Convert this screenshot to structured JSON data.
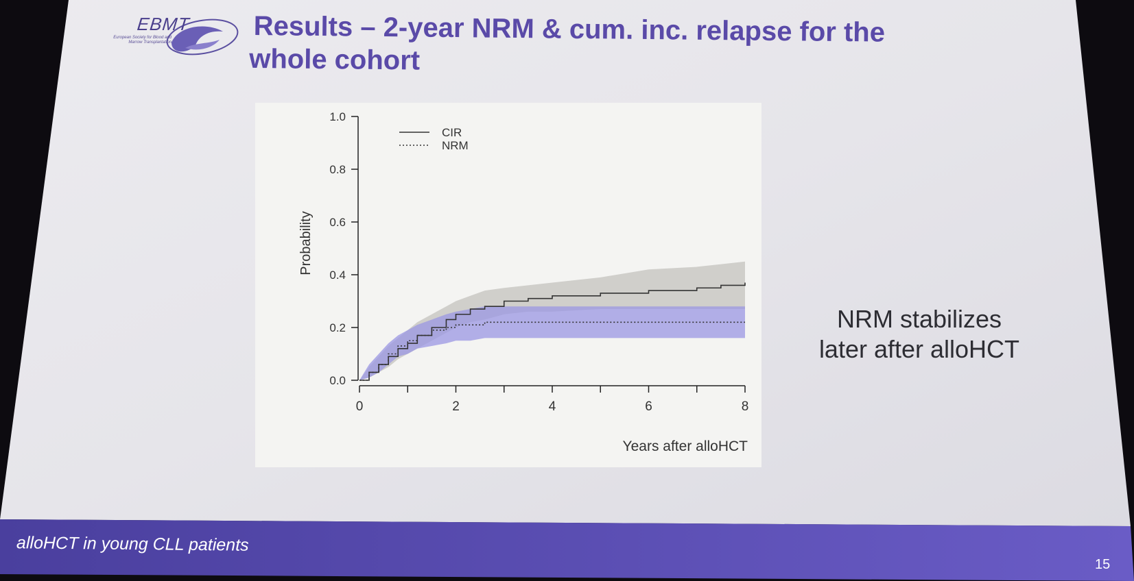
{
  "logo": {
    "name": "EBMT",
    "subtitle_line1": "European Society for Blood and",
    "subtitle_line2": "Marrow Transplantation"
  },
  "slide": {
    "title_line1": "Results – 2-year NRM & cum. inc. relapse for the",
    "title_line2": "whole cohort",
    "note_line1": "NRM stabilizes",
    "note_line2": "later after alloHCT",
    "footer": "alloHCT in young CLL patients",
    "page_number": "15"
  },
  "colors": {
    "slide_bg": "#e6e5ea",
    "footer_bar": "#5d4fb8",
    "title": "#5a4aa8",
    "cir_band": "#c9c8c4",
    "nrm_band": "#9b97e3"
  },
  "chart_data": {
    "type": "line",
    "xlabel": "Years after alloHCT",
    "ylabel": "Probability",
    "xlim": [
      0,
      8
    ],
    "ylim": [
      0,
      1.0
    ],
    "x_ticks": [
      "0",
      "2",
      "4",
      "6",
      "8"
    ],
    "y_ticks": [
      "0.0",
      "0.2",
      "0.4",
      "0.6",
      "0.8",
      "1.0"
    ],
    "legend_position": "top-left",
    "series": [
      {
        "name": "CIR",
        "style": "solid",
        "x": [
          0,
          0.2,
          0.4,
          0.6,
          0.8,
          1.0,
          1.2,
          1.5,
          1.8,
          2.0,
          2.3,
          2.6,
          3.0,
          3.5,
          4.0,
          5.0,
          6.0,
          7.0,
          7.5,
          8.0
        ],
        "y": [
          0,
          0.03,
          0.06,
          0.09,
          0.12,
          0.14,
          0.17,
          0.2,
          0.23,
          0.25,
          0.27,
          0.28,
          0.3,
          0.31,
          0.32,
          0.33,
          0.34,
          0.35,
          0.36,
          0.37
        ],
        "lower": [
          0,
          0.01,
          0.03,
          0.05,
          0.08,
          0.1,
          0.12,
          0.15,
          0.18,
          0.2,
          0.22,
          0.23,
          0.25,
          0.26,
          0.26,
          0.27,
          0.27,
          0.27,
          0.27,
          0.27
        ],
        "upper": [
          0,
          0.05,
          0.09,
          0.13,
          0.16,
          0.19,
          0.22,
          0.25,
          0.28,
          0.3,
          0.32,
          0.34,
          0.35,
          0.36,
          0.37,
          0.39,
          0.42,
          0.43,
          0.44,
          0.45
        ]
      },
      {
        "name": "NRM",
        "style": "dotted",
        "x": [
          0,
          0.2,
          0.4,
          0.6,
          0.8,
          1.0,
          1.2,
          1.5,
          1.8,
          2.0,
          2.3,
          2.6,
          3.0,
          3.5,
          4.0,
          5.0,
          6.0,
          7.0,
          8.0
        ],
        "y": [
          0,
          0.03,
          0.06,
          0.1,
          0.13,
          0.15,
          0.17,
          0.19,
          0.2,
          0.21,
          0.21,
          0.22,
          0.22,
          0.22,
          0.22,
          0.22,
          0.22,
          0.22,
          0.22
        ],
        "lower": [
          0,
          0.01,
          0.03,
          0.06,
          0.09,
          0.1,
          0.12,
          0.13,
          0.14,
          0.15,
          0.15,
          0.16,
          0.16,
          0.16,
          0.16,
          0.16,
          0.16,
          0.16,
          0.16
        ],
        "upper": [
          0,
          0.06,
          0.1,
          0.14,
          0.17,
          0.19,
          0.21,
          0.23,
          0.25,
          0.26,
          0.27,
          0.28,
          0.28,
          0.28,
          0.28,
          0.28,
          0.28,
          0.28,
          0.28
        ]
      }
    ]
  }
}
